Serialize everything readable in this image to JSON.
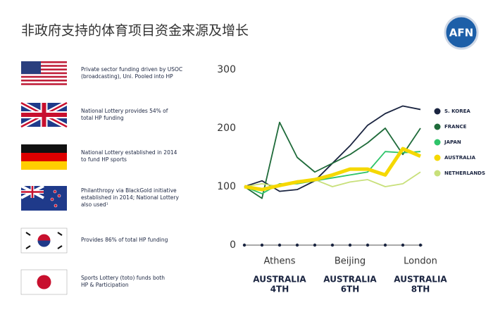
{
  "header": {
    "title": "非政府支持的体育项目资金来源及增长",
    "logo": "AFN"
  },
  "items": [
    {
      "lines": [
        "Private sector funding driven by USOC",
        "(broadcasting), Uni. Pooled into HP"
      ]
    },
    {
      "lines": [
        "National Lottery provides 54% of",
        "total HP funding"
      ]
    },
    {
      "lines": [
        "National Lottery established in 2014",
        "to fund HP sports"
      ]
    },
    {
      "lines": [
        "Philanthropy via BlackGold initiative",
        "established in 2014; National Lottery",
        "also used¹"
      ]
    },
    {
      "lines": [
        "Provides 86% of total HP funding"
      ]
    },
    {
      "lines": [
        "Sports Lottery (toto) funds both",
        "HP & Participation"
      ]
    }
  ],
  "chart_data": {
    "type": "line",
    "categories": [
      null,
      null,
      "Athens",
      null,
      null,
      null,
      "Beijing",
      null,
      null,
      null,
      "London"
    ],
    "annotations": [
      [
        "AUSTRALIA",
        "4TH"
      ],
      [
        "AUSTRALIA",
        "6TH"
      ],
      [
        "AUSTRALIA",
        "8TH"
      ]
    ],
    "ylim": [
      0,
      300
    ],
    "yticks": [
      0,
      100,
      200,
      300
    ],
    "series": [
      {
        "name": "S. KOREA",
        "color": "#1a2440",
        "values": [
          100,
          110,
          92,
          95,
          110,
          140,
          170,
          205,
          225,
          238,
          232
        ]
      },
      {
        "name": "FRANCE",
        "color": "#1f6b3a",
        "values": [
          100,
          80,
          210,
          150,
          125,
          140,
          155,
          175,
          200,
          155,
          200
        ]
      },
      {
        "name": "JAPAN",
        "color": "#2ec46a",
        "values": [
          100,
          88,
          105,
          105,
          110,
          115,
          120,
          125,
          160,
          158,
          160
        ]
      },
      {
        "name": "AUSTRALIA",
        "color": "#f5d800",
        "values": [
          100,
          95,
          102,
          108,
          112,
          120,
          130,
          130,
          120,
          165,
          152
        ]
      },
      {
        "name": "NETHERLANDS",
        "color": "#c8e07a",
        "values": [
          100,
          105,
          100,
          110,
          112,
          100,
          108,
          112,
          100,
          105,
          125
        ]
      }
    ]
  }
}
